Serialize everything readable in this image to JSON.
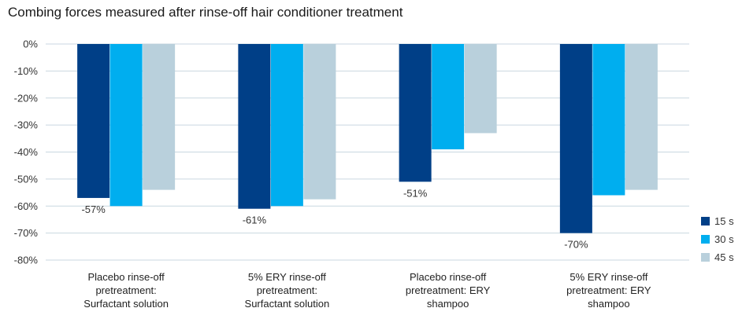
{
  "chart_data": {
    "type": "bar",
    "title": "Combing forces measured after rinse-off hair conditioner treatment",
    "xlabel": "",
    "ylabel": "",
    "ylim": [
      -80,
      0
    ],
    "yticks": [
      0,
      -10,
      -20,
      -30,
      -40,
      -50,
      -60,
      -70,
      -80
    ],
    "ytick_labels": [
      "0%",
      "-10%",
      "-20%",
      "-30%",
      "-40%",
      "-50%",
      "-60%",
      "-70%",
      "-80%"
    ],
    "grid": true,
    "legend_position": "right",
    "categories": [
      [
        "Placebo rinse-off",
        "pretreatment:",
        "Surfactant solution"
      ],
      [
        "5% ERY rinse-off",
        "pretreatment:",
        "Surfactant solution"
      ],
      [
        "Placebo rinse-off",
        "pretreatment: ERY",
        "shampoo"
      ],
      [
        "5% ERY rinse-off",
        "pretreatment: ERY",
        "shampoo"
      ]
    ],
    "series": [
      {
        "name": "15 s",
        "color": "#003f87",
        "values": [
          -57,
          -61,
          -51,
          -70
        ]
      },
      {
        "name": "30 s",
        "color": "#00aeef",
        "values": [
          -60,
          -60,
          -39,
          -56
        ]
      },
      {
        "name": "45 s",
        "color": "#b9d0dc",
        "values": [
          -54,
          -57.5,
          -33,
          -54
        ]
      }
    ],
    "data_labels": [
      {
        "series": 0,
        "category": 0,
        "text": "-57%"
      },
      {
        "series": 0,
        "category": 1,
        "text": "-61%"
      },
      {
        "series": 0,
        "category": 2,
        "text": "-51%"
      },
      {
        "series": 0,
        "category": 3,
        "text": "-70%"
      }
    ]
  }
}
